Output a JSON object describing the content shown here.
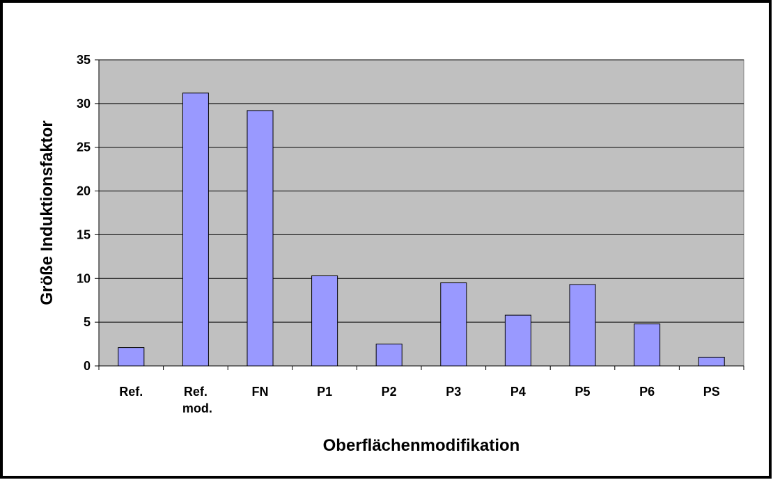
{
  "chart_data": {
    "type": "bar",
    "x_label": "Oberflächenmodifikation",
    "y_label": "Größe Induktionsfaktor",
    "categories": [
      "Ref.",
      "Ref. mod.",
      "FN",
      "P1",
      "P2",
      "P3",
      "P4",
      "P5",
      "P6",
      "PS"
    ],
    "values": [
      2.1,
      31.2,
      29.2,
      10.3,
      2.5,
      9.5,
      5.8,
      9.3,
      4.8,
      1.0
    ],
    "color": "#9999ff",
    "plot_background": "#c0c0c0",
    "ylim": [
      0,
      35
    ],
    "yticks": [
      0,
      5,
      10,
      15,
      20,
      25,
      30,
      35
    ],
    "grid": true
  }
}
